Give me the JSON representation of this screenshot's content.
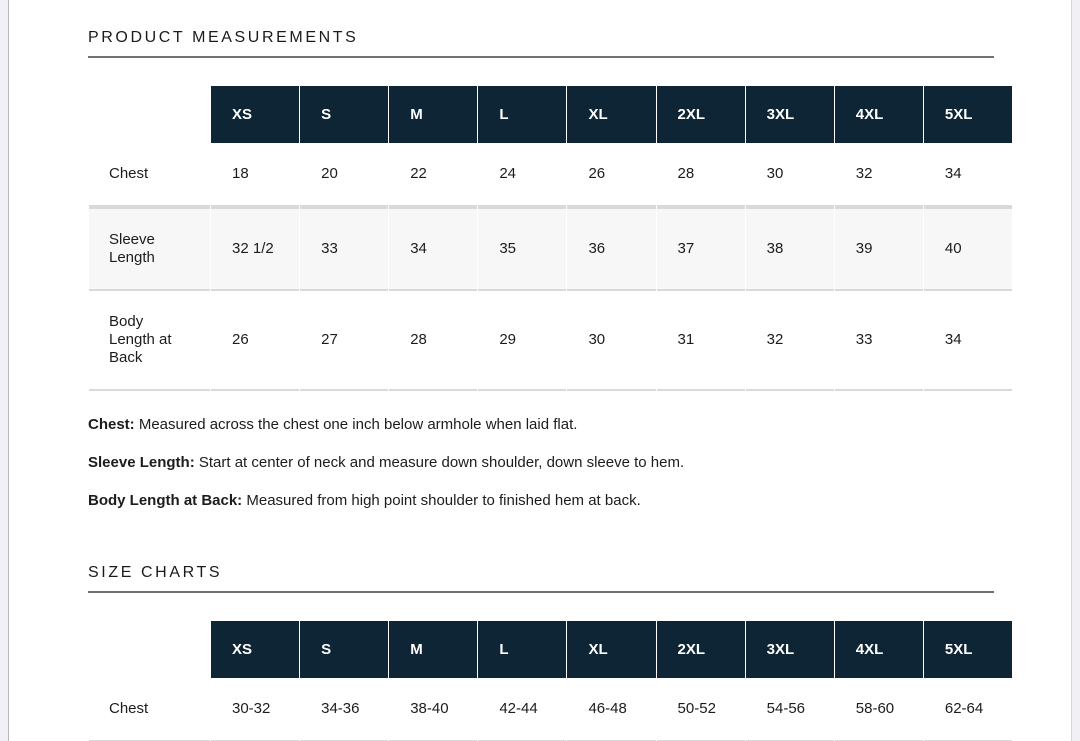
{
  "product_measurements": {
    "title": "PRODUCT MEASUREMENTS",
    "table": {
      "sizes": [
        "XS",
        "S",
        "M",
        "L",
        "XL",
        "2XL",
        "3XL",
        "4XL",
        "5XL"
      ],
      "rows": [
        {
          "label": "Chest",
          "values": [
            "18",
            "20",
            "22",
            "24",
            "26",
            "28",
            "30",
            "32",
            "34"
          ]
        },
        {
          "label": "Sleeve Length",
          "values": [
            "32 1/2",
            "33",
            "34",
            "35",
            "36",
            "37",
            "38",
            "39",
            "40"
          ]
        },
        {
          "label": "Body Length at Back",
          "values": [
            "26",
            "27",
            "28",
            "29",
            "30",
            "31",
            "32",
            "33",
            "34"
          ]
        }
      ]
    },
    "notes": [
      {
        "term": "Chest:",
        "text": " Measured across the chest one inch below armhole when laid flat."
      },
      {
        "term": "Sleeve Length:",
        "text": " Start at center of neck and measure down shoulder, down sleeve to hem."
      },
      {
        "term": "Body Length at Back:",
        "text": " Measured from high point shoulder to finished hem at back."
      }
    ]
  },
  "size_charts": {
    "title": "SIZE CHARTS",
    "table": {
      "sizes": [
        "XS",
        "S",
        "M",
        "L",
        "XL",
        "2XL",
        "3XL",
        "4XL",
        "5XL"
      ],
      "rows": [
        {
          "label": "Chest",
          "values": [
            "30-32",
            "34-36",
            "38-40",
            "42-44",
            "46-48",
            "50-52",
            "54-56",
            "58-60",
            "62-64"
          ]
        }
      ]
    }
  },
  "colors": {
    "table_header_bg": "#0d2535",
    "table_header_text": "#ffffff",
    "body_text": "#1c1c1c",
    "alt_row_bg": "#f7f7f7",
    "row_border": "#d9d9d9",
    "title_underline": "#717175",
    "page_bg": "#ffffff",
    "gutter_bg": "#f1f1f5"
  }
}
